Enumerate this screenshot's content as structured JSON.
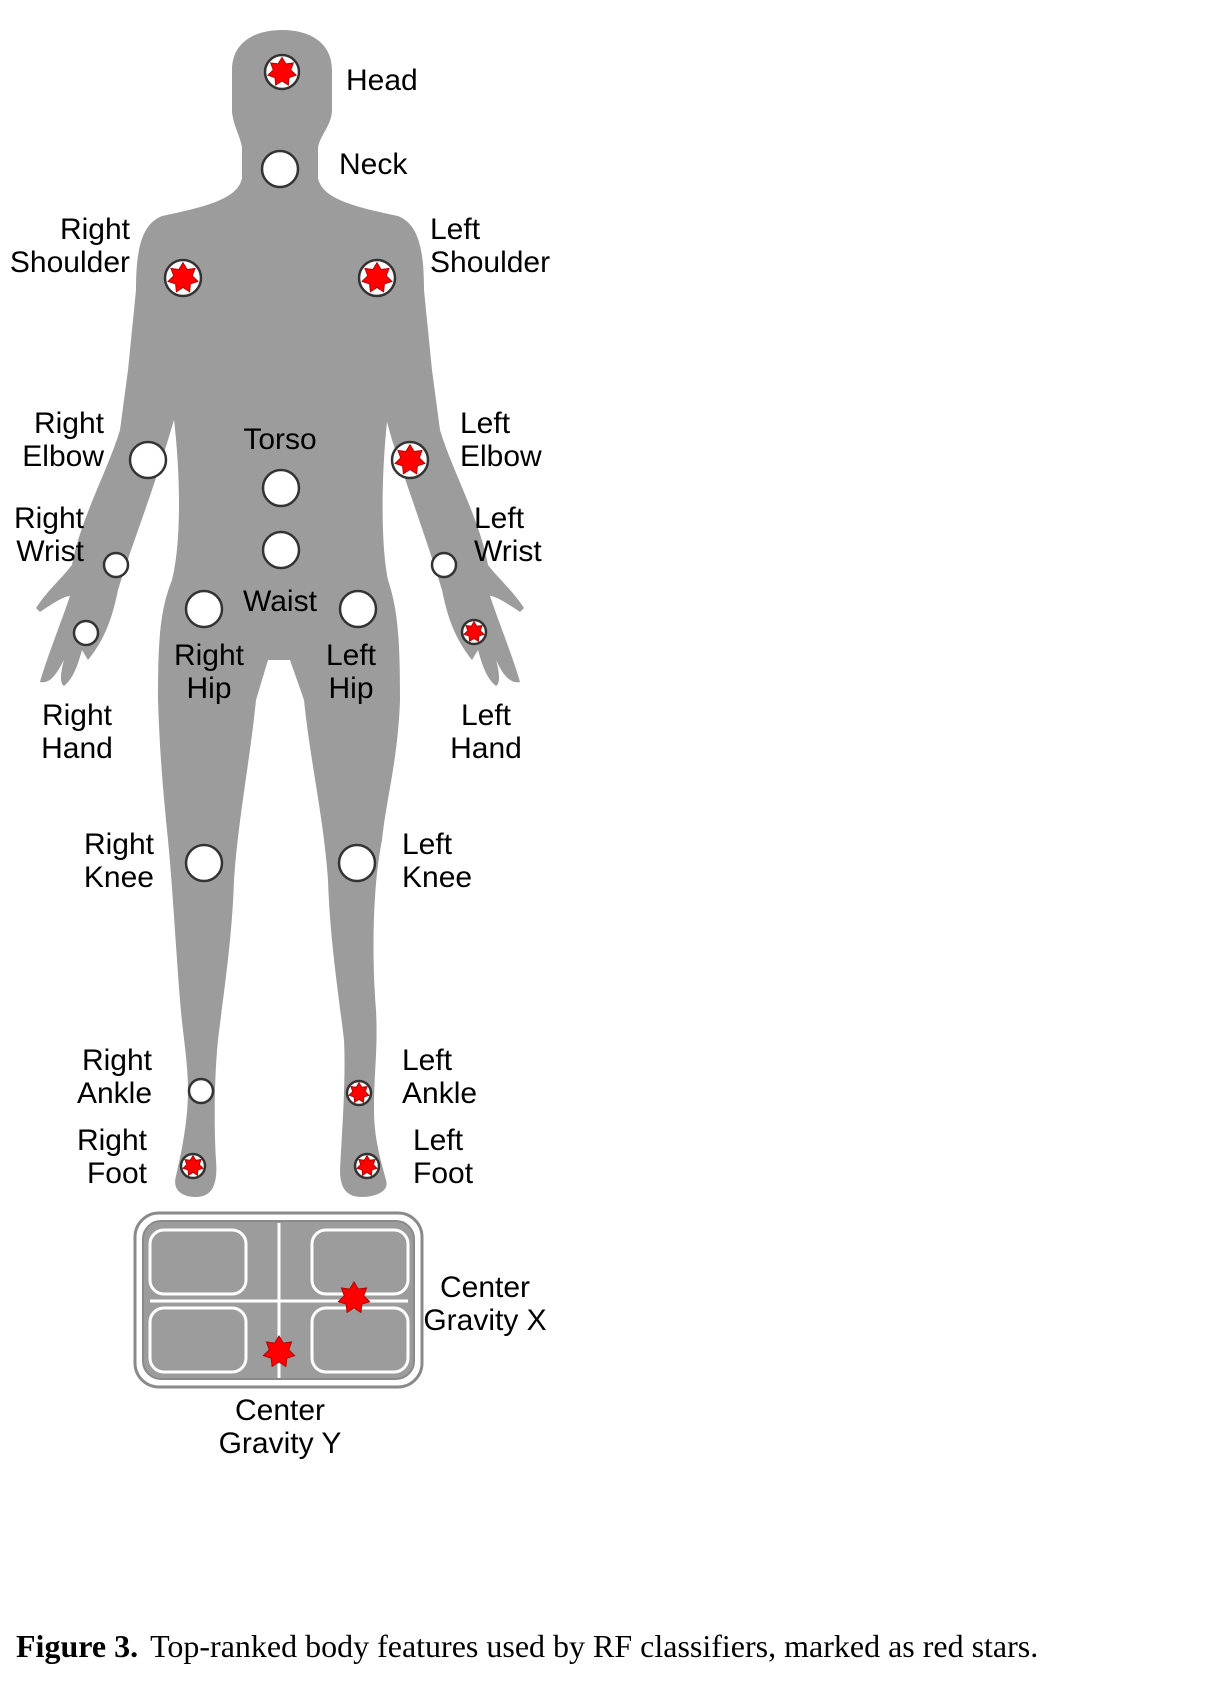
{
  "joints": [
    {
      "id": "head",
      "label": [
        "Head"
      ],
      "top_ranked": true
    },
    {
      "id": "neck",
      "label": [
        "Neck"
      ],
      "top_ranked": false
    },
    {
      "id": "right-shoulder",
      "label": [
        "Right",
        "Shoulder"
      ],
      "top_ranked": true
    },
    {
      "id": "left-shoulder",
      "label": [
        "Left",
        "Shoulder"
      ],
      "top_ranked": true
    },
    {
      "id": "right-elbow",
      "label": [
        "Right",
        "Elbow"
      ],
      "top_ranked": false
    },
    {
      "id": "left-elbow",
      "label": [
        "Left",
        "Elbow"
      ],
      "top_ranked": true
    },
    {
      "id": "torso",
      "label": [
        "Torso"
      ],
      "top_ranked": false
    },
    {
      "id": "waist",
      "label": [
        "Waist"
      ],
      "top_ranked": false
    },
    {
      "id": "right-wrist",
      "label": [
        "Right",
        "Wrist"
      ],
      "top_ranked": false
    },
    {
      "id": "left-wrist",
      "label": [
        "Left",
        "Wrist"
      ],
      "top_ranked": false
    },
    {
      "id": "right-hip",
      "label": [
        "Right",
        "Hip"
      ],
      "top_ranked": false
    },
    {
      "id": "left-hip",
      "label": [
        "Left",
        "Hip"
      ],
      "top_ranked": false
    },
    {
      "id": "right-hand",
      "label": [
        "Right",
        "Hand"
      ],
      "top_ranked": false
    },
    {
      "id": "left-hand",
      "label": [
        "Left",
        "Hand"
      ],
      "top_ranked": true
    },
    {
      "id": "right-knee",
      "label": [
        "Right",
        "Knee"
      ],
      "top_ranked": false
    },
    {
      "id": "left-knee",
      "label": [
        "Left",
        "Knee"
      ],
      "top_ranked": false
    },
    {
      "id": "right-ankle",
      "label": [
        "Right",
        "Ankle"
      ],
      "top_ranked": false
    },
    {
      "id": "left-ankle",
      "label": [
        "Left",
        "Ankle"
      ],
      "top_ranked": true
    },
    {
      "id": "right-foot",
      "label": [
        "Right",
        "Foot"
      ],
      "top_ranked": true
    },
    {
      "id": "left-foot",
      "label": [
        "Left",
        "Foot"
      ],
      "top_ranked": true
    }
  ],
  "balance_board": {
    "features": [
      {
        "id": "center-gravity-x",
        "label": [
          "Center",
          "Gravity X"
        ],
        "top_ranked": true
      },
      {
        "id": "center-gravity-y",
        "label": [
          "Center",
          "Gravity Y"
        ],
        "top_ranked": true
      }
    ]
  },
  "caption": {
    "figure": "Figure 3.",
    "text": "Top-ranked body features used by RF classifiers, marked as red stars."
  },
  "colors": {
    "body": "#9c9c9c",
    "star": "#ff0000",
    "star_stroke": "#b00000",
    "marker_fill": "#ffffff",
    "marker_stroke": "#333333"
  }
}
